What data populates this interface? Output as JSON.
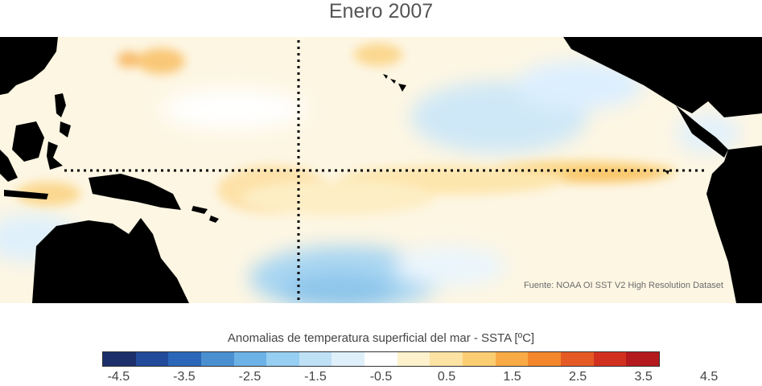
{
  "title": "Enero 2007",
  "source_note": "Fuente: NOAA OI SST V2 High Resolution Dataset",
  "colorbar": {
    "label": "Anomalias de temperatura superficial del mar - SSTA  [ºC]",
    "colors": [
      "#1c2f6b",
      "#214a9a",
      "#2a67b8",
      "#4a8fd0",
      "#6db2e6",
      "#96cff2",
      "#bfe1f6",
      "#dff0fb",
      "#ffffff",
      "#fdf2cc",
      "#fce3a3",
      "#fbcd72",
      "#f8ab45",
      "#f4862b",
      "#e55a24",
      "#d2301e",
      "#b4191d"
    ],
    "ticks": [
      "-4.5",
      "-3.5",
      "-2.5",
      "-1.5",
      "-0.5",
      "0.5",
      "1.5",
      "2.5",
      "3.5",
      "4.5"
    ]
  },
  "map": {
    "background_color": "#fdf6e3",
    "land_color": "#000000",
    "reference_lines": [
      "dateline-vertical",
      "equator-horizontal"
    ]
  }
}
